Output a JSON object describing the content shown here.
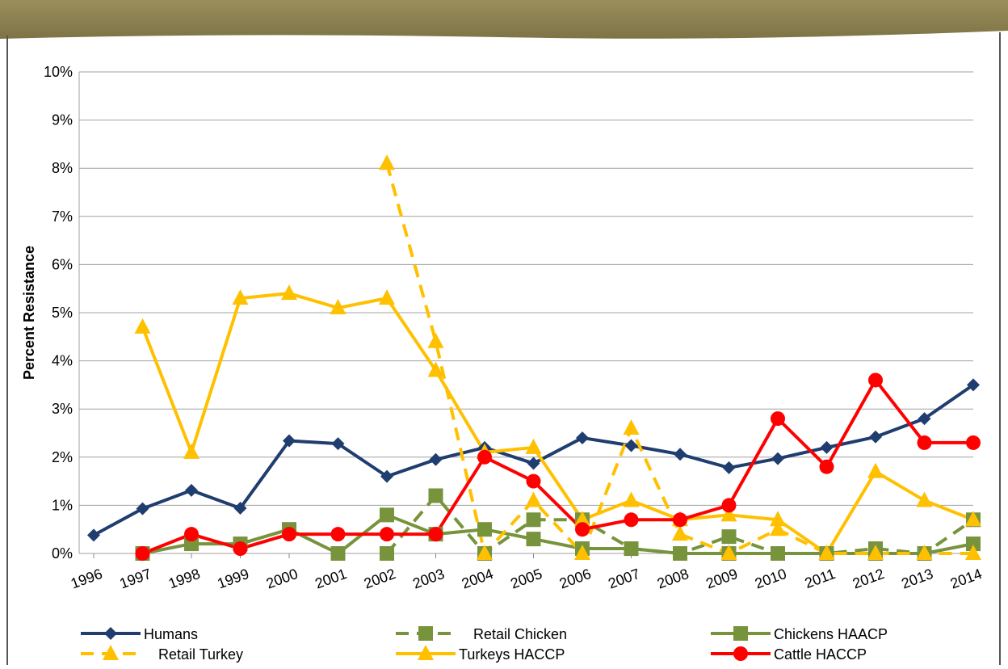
{
  "chart_data": {
    "type": "line",
    "y_label": "Percent Resistance",
    "x": [
      1996,
      1997,
      1998,
      1999,
      2000,
      2001,
      2002,
      2003,
      2004,
      2005,
      2006,
      2007,
      2008,
      2009,
      2010,
      2011,
      2012,
      2013,
      2014
    ],
    "xlim": [
      1996,
      2014
    ],
    "ylim": [
      0,
      10
    ],
    "yticks": [
      {
        "value": 0,
        "label": "0%"
      },
      {
        "value": 1,
        "label": "1%"
      },
      {
        "value": 2,
        "label": "2%"
      },
      {
        "value": 3,
        "label": "3%"
      },
      {
        "value": 4,
        "label": "4%"
      },
      {
        "value": 5,
        "label": "5%"
      },
      {
        "value": 6,
        "label": "6%"
      },
      {
        "value": 7,
        "label": "7%"
      },
      {
        "value": 8,
        "label": "8%"
      },
      {
        "value": 9,
        "label": "9%"
      },
      {
        "value": 10,
        "label": "10%"
      }
    ],
    "grid": true,
    "series": [
      {
        "name": "Humans",
        "color": "#1f3d6e",
        "marker": "diamond",
        "dashed": false,
        "values": [
          0.38,
          0.93,
          1.31,
          0.94,
          2.34,
          2.28,
          1.6,
          1.95,
          2.2,
          1.87,
          2.4,
          2.24,
          2.06,
          1.78,
          1.97,
          2.2,
          2.42,
          2.8,
          3.5
        ]
      },
      {
        "name": "Retail Chicken",
        "color": "#77933c",
        "marker": "square",
        "dashed": true,
        "values": [
          null,
          null,
          null,
          null,
          null,
          null,
          0,
          1.2,
          0,
          0.7,
          0.7,
          0.1,
          0,
          0.35,
          0,
          0,
          0.1,
          0,
          0.7
        ]
      },
      {
        "name": "Chickens HAACP",
        "color": "#77933c",
        "marker": "square",
        "dashed": false,
        "values": [
          null,
          0,
          0.2,
          0.2,
          0.5,
          0,
          0.8,
          0.4,
          0.5,
          0.3,
          0.1,
          0.1,
          0,
          0,
          0,
          0,
          0,
          0,
          0.2
        ]
      },
      {
        "name": "Retail Turkey",
        "color": "#ffc000",
        "marker": "triangle",
        "dashed": true,
        "values": [
          null,
          null,
          null,
          null,
          null,
          null,
          8.1,
          4.4,
          0,
          1.1,
          0,
          2.6,
          0.4,
          0,
          0.5,
          0,
          0,
          0,
          0
        ]
      },
      {
        "name": "Turkeys HACCP",
        "color": "#ffc000",
        "marker": "triangle",
        "dashed": false,
        "values": [
          null,
          4.7,
          2.1,
          5.3,
          5.4,
          5.1,
          5.3,
          3.8,
          2.1,
          2.2,
          0.7,
          1.1,
          0.7,
          0.8,
          0.7,
          0,
          1.7,
          1.1,
          0.7
        ]
      },
      {
        "name": "Cattle HACCP",
        "color": "#ff0000",
        "marker": "circle",
        "dashed": false,
        "values": [
          null,
          0,
          0.4,
          0.1,
          0.4,
          0.4,
          0.4,
          0.4,
          2.0,
          1.5,
          0.5,
          0.7,
          0.7,
          1.0,
          2.8,
          1.8,
          3.6,
          2.3,
          2.3
        ]
      }
    ]
  }
}
